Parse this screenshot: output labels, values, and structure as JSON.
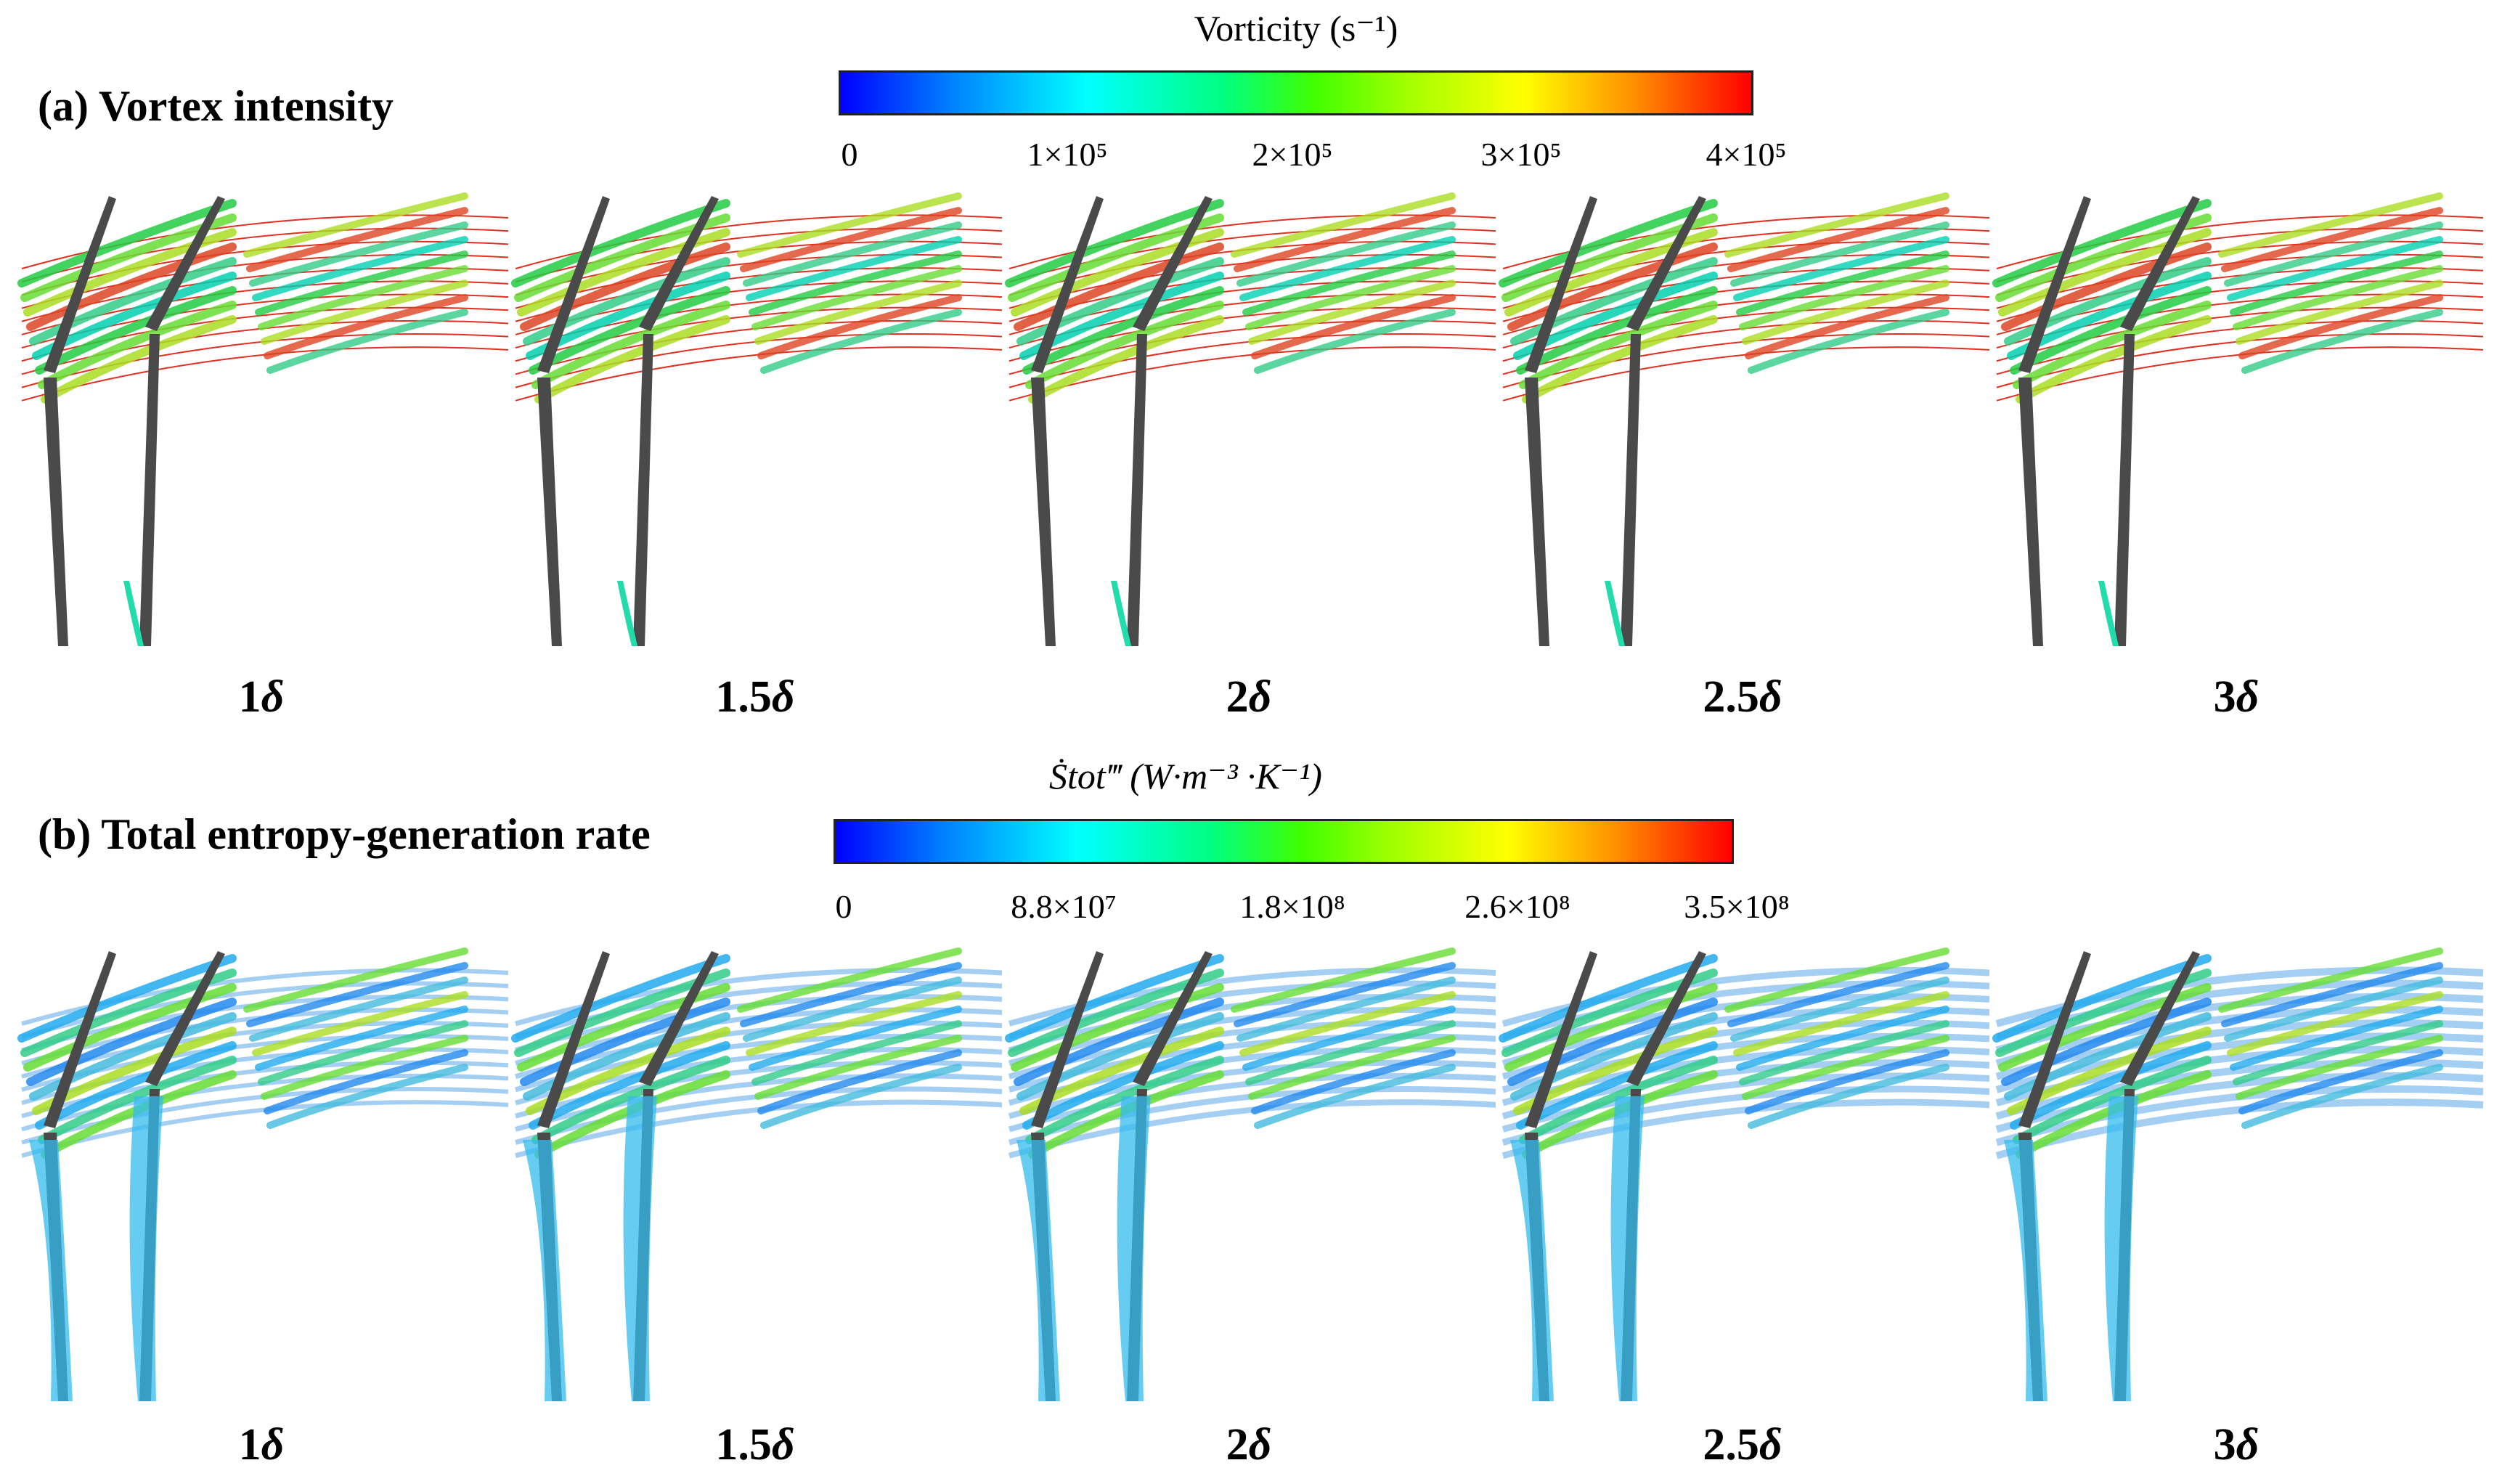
{
  "figure": {
    "section_a": {
      "title": "(a) Vortex intensity",
      "colorbar": {
        "title": "Vorticity (s⁻¹)",
        "ticks": [
          "0",
          "1×10⁵",
          "2×10⁵",
          "3×10⁵",
          "4×10⁵"
        ],
        "min": 0,
        "max": 400000
      },
      "panels": [
        {
          "label_num": "1",
          "label_sym": "δ",
          "spacing": 1
        },
        {
          "label_num": "1.5",
          "label_sym": "δ",
          "spacing": 1.5
        },
        {
          "label_num": "2",
          "label_sym": "δ",
          "spacing": 2
        },
        {
          "label_num": "2.5",
          "label_sym": "δ",
          "spacing": 2.5
        },
        {
          "label_num": "3",
          "label_sym": "δ",
          "spacing": 3
        }
      ]
    },
    "section_b": {
      "title": "(b) Total entropy-generation rate",
      "colorbar": {
        "title_symbol": "Ṡtot‴",
        "title_units": "(W·m⁻³ ·K⁻¹)",
        "ticks": [
          "0",
          "8.8×10⁷",
          "1.8×10⁸",
          "2.6×10⁸",
          "3.5×10⁸"
        ],
        "min": 0,
        "max": 350000000
      },
      "panels": [
        {
          "label_num": "1",
          "label_sym": "δ",
          "spacing": 1
        },
        {
          "label_num": "1.5",
          "label_sym": "δ",
          "spacing": 1.5
        },
        {
          "label_num": "2",
          "label_sym": "δ",
          "spacing": 2
        },
        {
          "label_num": "2.5",
          "label_sym": "δ",
          "spacing": 2.5
        },
        {
          "label_num": "3",
          "label_sym": "δ",
          "spacing": 3
        }
      ]
    },
    "colors": {
      "blade": "#4a4a4a",
      "streamline": "#e03020",
      "cmap_low": "#0000ff",
      "cmap_mid": "#00ff80",
      "cmap_high": "#ff0000"
    }
  }
}
